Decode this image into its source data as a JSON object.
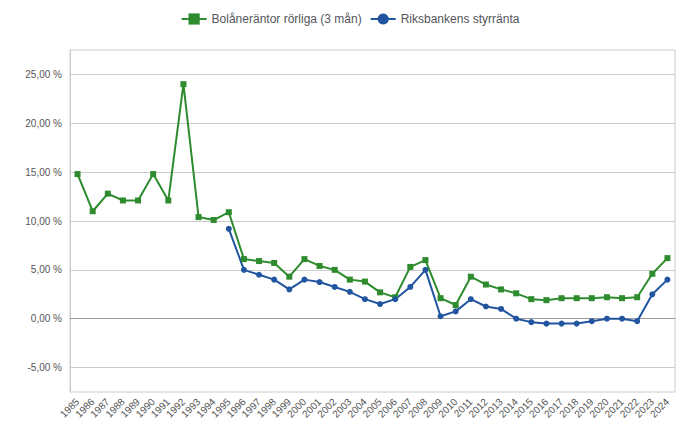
{
  "chart_data": {
    "type": "line",
    "categories": [
      "1985",
      "1986",
      "1987",
      "1988",
      "1989",
      "1990",
      "1991",
      "1992",
      "1993",
      "1994",
      "1995",
      "1996",
      "1997",
      "1998",
      "1999",
      "2000",
      "2001",
      "2002",
      "2003",
      "2004",
      "2005",
      "2006",
      "2007",
      "2008",
      "2009",
      "2010",
      "2011",
      "2012",
      "2013",
      "2014",
      "2015",
      "2016",
      "2017",
      "2018",
      "2019",
      "2020",
      "2021",
      "2022",
      "2023",
      "2024"
    ],
    "series": [
      {
        "name": "Bolåneräntor rörliga (3 mån)",
        "color": "#2e8b2e",
        "marker": "square",
        "values": [
          14.8,
          11.0,
          12.8,
          12.1,
          12.1,
          14.8,
          12.1,
          24.0,
          10.4,
          10.1,
          10.9,
          6.1,
          5.9,
          5.7,
          4.3,
          6.1,
          5.4,
          5.0,
          4.0,
          3.8,
          2.7,
          2.2,
          5.3,
          6.0,
          2.1,
          1.4,
          4.3,
          3.5,
          3.0,
          2.6,
          2.0,
          1.9,
          2.1,
          2.1,
          2.1,
          2.2,
          2.1,
          2.2,
          4.6,
          6.2
        ]
      },
      {
        "name": "Riksbankens styrränta",
        "color": "#2155a0",
        "marker": "circle",
        "values": [
          null,
          null,
          null,
          null,
          null,
          null,
          null,
          null,
          null,
          null,
          9.2,
          5.0,
          4.5,
          4.0,
          3.0,
          4.0,
          3.75,
          3.25,
          2.75,
          2.0,
          1.5,
          2.0,
          3.25,
          5.0,
          0.25,
          0.75,
          2.0,
          1.25,
          1.0,
          0.0,
          -0.35,
          -0.5,
          -0.5,
          -0.5,
          -0.25,
          0.0,
          0.0,
          -0.25,
          2.5,
          4.0
        ]
      }
    ],
    "ylim": [
      -7.5,
      27.5
    ],
    "yticks": [
      {
        "value": -5.0,
        "label": "-5,00 %"
      },
      {
        "value": 0.0,
        "label": "0,00 %"
      },
      {
        "value": 5.0,
        "label": "5,00 %"
      },
      {
        "value": 10.0,
        "label": "10,00 %"
      },
      {
        "value": 15.0,
        "label": "15,00 %"
      },
      {
        "value": 20.0,
        "label": "20,00 %"
      },
      {
        "value": 25.0,
        "label": "25,00 %"
      }
    ],
    "grid": true,
    "legend": "top"
  }
}
